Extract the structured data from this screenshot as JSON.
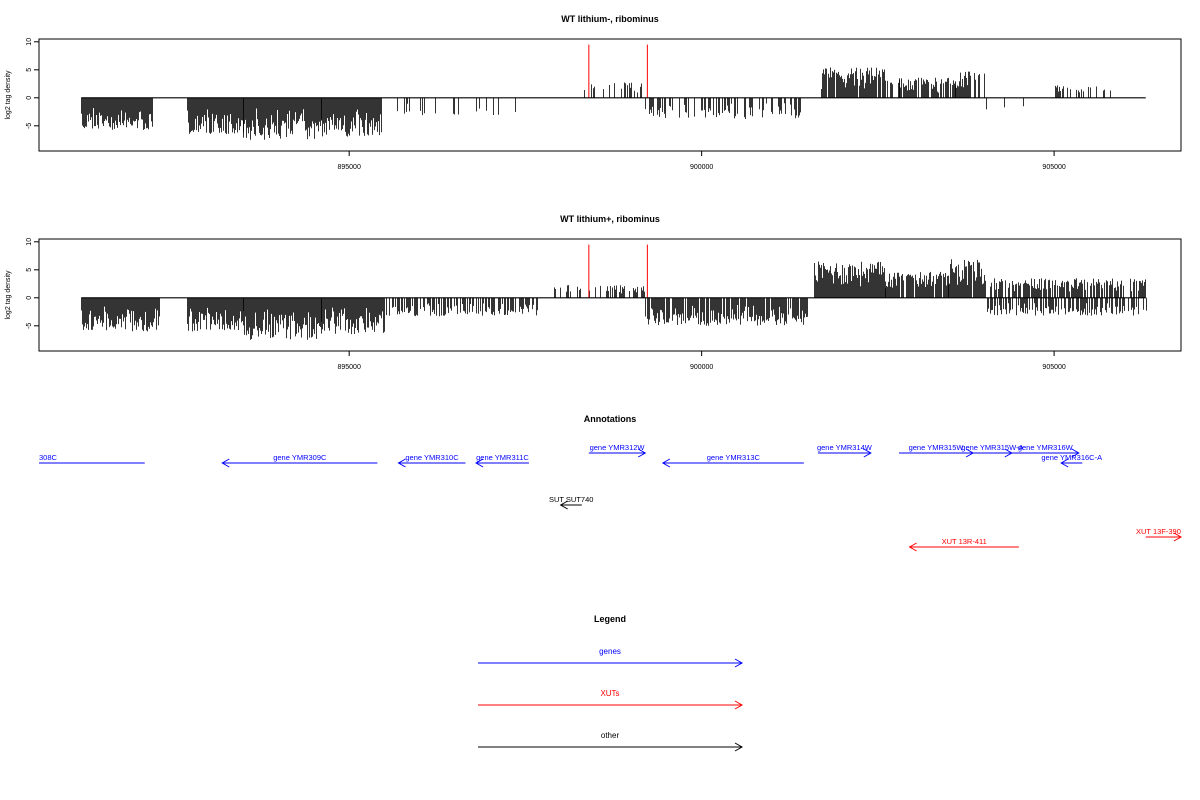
{
  "chart_data": [
    {
      "type": "bar",
      "title": "WT lithium-, ribominus",
      "ylabel": "log2 tag density",
      "xlabel": "",
      "xlim": [
        890600,
        906800
      ],
      "ylim": [
        -9.5,
        10.5
      ],
      "xticks": [
        895000,
        900000,
        905000
      ],
      "yticks": [
        -5,
        0,
        5,
        10
      ],
      "grid": false,
      "axis_line": [
        891200,
        906300
      ],
      "segments": [
        {
          "x0": 891200,
          "x1": 892200,
          "amp": -5.8,
          "density": 1.0
        },
        {
          "x0": 892700,
          "x1": 893500,
          "amp": -6.5,
          "density": 1.0
        },
        {
          "x0": 893500,
          "x1": 894600,
          "amp": -7.5,
          "density": 1.0
        },
        {
          "x0": 894600,
          "x1": 895450,
          "amp": -7.0,
          "density": 1.0
        },
        {
          "x0": 895600,
          "x1": 897500,
          "amp": -3.2,
          "density": 0.1
        },
        {
          "x0": 898300,
          "x1": 899200,
          "amp": 2.8,
          "density": 0.3
        },
        {
          "x0": 899200,
          "x1": 901400,
          "amp": -3.8,
          "density": 0.45
        },
        {
          "x0": 901700,
          "x1": 902600,
          "amp": 5.6,
          "density": 0.95
        },
        {
          "x0": 902600,
          "x1": 902800,
          "amp": 3.5,
          "density": 0.4
        },
        {
          "x0": 902800,
          "x1": 903600,
          "amp": 3.6,
          "density": 0.75
        },
        {
          "x0": 903600,
          "x1": 904000,
          "amp": 5.0,
          "density": 0.6
        },
        {
          "x0": 904000,
          "x1": 904800,
          "amp": -2.5,
          "density": 0.05
        },
        {
          "x0": 905000,
          "x1": 905800,
          "amp": 2.4,
          "density": 0.25
        }
      ],
      "red_lines": [
        898400,
        899230
      ]
    },
    {
      "type": "bar",
      "title": "WT lithium+, ribominus",
      "ylabel": "log2 tag density",
      "xlabel": "",
      "xlim": [
        890600,
        906800
      ],
      "ylim": [
        -9.5,
        10.5
      ],
      "xticks": [
        895000,
        900000,
        905000
      ],
      "yticks": [
        -5,
        0,
        5,
        10
      ],
      "grid": false,
      "axis_line": [
        891200,
        906300
      ],
      "segments": [
        {
          "x0": 891200,
          "x1": 892300,
          "amp": -6.0,
          "density": 1.0
        },
        {
          "x0": 892700,
          "x1": 893500,
          "amp": -6.0,
          "density": 1.0
        },
        {
          "x0": 893500,
          "x1": 894600,
          "amp": -7.5,
          "density": 1.0
        },
        {
          "x0": 894600,
          "x1": 895500,
          "amp": -6.5,
          "density": 1.0
        },
        {
          "x0": 895500,
          "x1": 897700,
          "amp": -3.3,
          "density": 0.55
        },
        {
          "x0": 897900,
          "x1": 899200,
          "amp": 2.3,
          "density": 0.45
        },
        {
          "x0": 899200,
          "x1": 901500,
          "amp": -5.0,
          "density": 0.9
        },
        {
          "x0": 901600,
          "x1": 902600,
          "amp": 6.5,
          "density": 1.0
        },
        {
          "x0": 902600,
          "x1": 903500,
          "amp": 4.8,
          "density": 0.9
        },
        {
          "x0": 903500,
          "x1": 904000,
          "amp": 7.0,
          "density": 0.9
        },
        {
          "x0": 904000,
          "x1": 906300,
          "amp": 3.5,
          "density": 0.7
        },
        {
          "x0": 904000,
          "x1": 906300,
          "amp": -3.2,
          "density": 0.6
        }
      ],
      "red_lines": [
        898400,
        899230
      ]
    }
  ],
  "annotations": {
    "title": "Annotations",
    "features": [
      {
        "label": "308C",
        "start": 890600,
        "end": 892100,
        "row": 0,
        "kind": "gene",
        "strand": "none",
        "label_at": "start"
      },
      {
        "label": "gene YMR309C",
        "start": 893200,
        "end": 895400,
        "row": 0,
        "kind": "gene",
        "strand": "-"
      },
      {
        "label": "gene YMR310C",
        "start": 895700,
        "end": 896650,
        "row": 0,
        "kind": "gene",
        "strand": "-"
      },
      {
        "label": "gene YMR311C",
        "start": 896800,
        "end": 897550,
        "row": 0,
        "kind": "gene",
        "strand": "-"
      },
      {
        "label": "gene YMR312W",
        "start": 898400,
        "end": 899200,
        "row": -1,
        "kind": "gene",
        "strand": "+"
      },
      {
        "label": "gene YMR313C",
        "start": 899450,
        "end": 901450,
        "row": 0,
        "kind": "gene",
        "strand": "-"
      },
      {
        "label": "gene YMR314W",
        "start": 901650,
        "end": 902400,
        "row": -1,
        "kind": "gene",
        "strand": "+"
      },
      {
        "label": "gene YMR315W",
        "start": 902800,
        "end": 903850,
        "row": -1,
        "kind": "gene",
        "strand": "+"
      },
      {
        "label": "gene YMR315W-A",
        "start": 903850,
        "end": 904400,
        "row": -1,
        "kind": "gene",
        "strand": "+"
      },
      {
        "label": "gene YMR316W",
        "start": 904400,
        "end": 905350,
        "row": -1,
        "kind": "gene",
        "strand": "+"
      },
      {
        "label": "gene YMR316C-A",
        "start": 905100,
        "end": 905400,
        "row": 0,
        "kind": "gene",
        "strand": "-"
      },
      {
        "label": "SUT SUT740",
        "start": 898000,
        "end": 898300,
        "row": 1,
        "kind": "other",
        "strand": "-"
      },
      {
        "label": "XUT 13R-411",
        "start": 902950,
        "end": 904500,
        "row": 2,
        "kind": "xut",
        "strand": "-"
      },
      {
        "label": "XUT 13F-390",
        "start": 906300,
        "end": 907200,
        "row": 3,
        "kind": "xut",
        "strand": "+"
      }
    ]
  },
  "legend": {
    "title": "Legend",
    "items": [
      {
        "label": "genes",
        "kind": "gene"
      },
      {
        "label": "XUTs",
        "kind": "xut"
      },
      {
        "label": "other",
        "kind": "other"
      }
    ]
  },
  "colors": {
    "gene": "#0000ff",
    "xut": "#ff0000",
    "other": "#000000",
    "signal": "#000000",
    "marker": "#ff0000"
  }
}
